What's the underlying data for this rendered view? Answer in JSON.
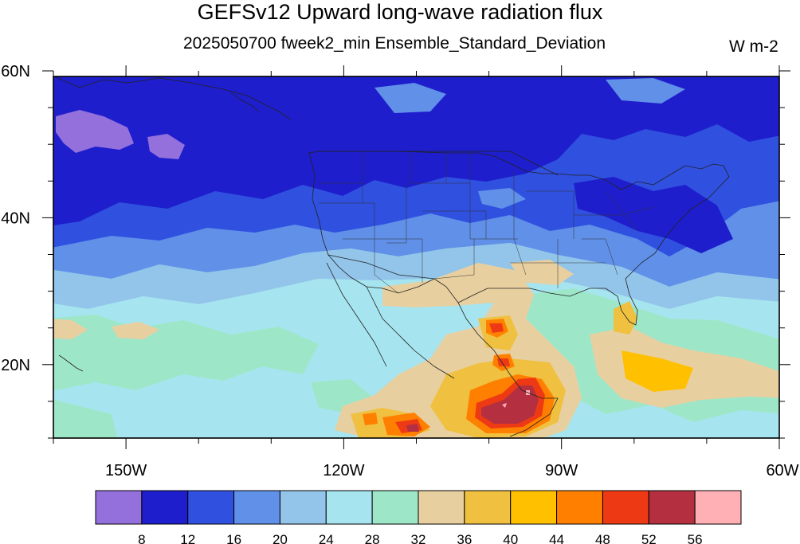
{
  "title": "GEFSv12 Upward long-wave radiation flux",
  "subtitle": "2025050700 fweek2_min Ensemble_Standard_Deviation",
  "units": "W m-2",
  "map": {
    "region": "North Pacific / North America",
    "lon_range": [
      -160,
      -60
    ],
    "lat_range": [
      10,
      60
    ],
    "lon_ticks": [
      {
        "lon": -150,
        "label": "150W"
      },
      {
        "lon": -120,
        "label": "120W"
      },
      {
        "lon": -90,
        "label": "90W"
      },
      {
        "lon": -60,
        "label": "60W"
      }
    ],
    "lat_ticks": [
      {
        "lat": 60,
        "label": "60N"
      },
      {
        "lat": 40,
        "label": "40N"
      },
      {
        "lat": 20,
        "label": "20N"
      }
    ]
  },
  "colorbar": {
    "levels": [
      "8",
      "12",
      "16",
      "20",
      "24",
      "28",
      "32",
      "36",
      "40",
      "44",
      "48",
      "52",
      "56"
    ],
    "colors": [
      "#9370db",
      "#1e1ecc",
      "#3050e0",
      "#6090e8",
      "#93c5ea",
      "#a6e5ef",
      "#9ee6c8",
      "#e8cfa0",
      "#f0c040",
      "#ffc000",
      "#ff8000",
      "#ee3a14",
      "#b43040",
      "#ffb0b4"
    ]
  }
}
